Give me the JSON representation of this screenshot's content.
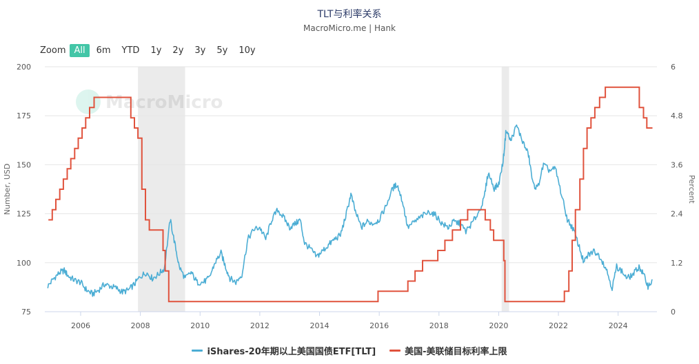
{
  "header": {
    "title": "TLT与利率关系",
    "subtitle": "MacroMicro.me | Hank"
  },
  "zoom": {
    "label": "Zoom",
    "buttons": [
      "All",
      "6m",
      "YTD",
      "1y",
      "2y",
      "3y",
      "5y",
      "10y"
    ],
    "active": "All"
  },
  "watermark": "MacroMicro",
  "colors": {
    "tlt": "#4badd4",
    "rate": "#e0523c",
    "shade": "#ebebeb",
    "grid": "#e6e6e6",
    "accent": "#43c6a7"
  },
  "chart_data": {
    "type": "line",
    "x_range": [
      2004.8,
      2025.3
    ],
    "x_ticks": [
      "2006",
      "2008",
      "2010",
      "2012",
      "2014",
      "2016",
      "2018",
      "2020",
      "2022",
      "2024"
    ],
    "y_left": {
      "label": "Number, USD",
      "range": [
        75,
        200
      ],
      "ticks": [
        "75",
        "100",
        "125",
        "150",
        "175",
        "200"
      ]
    },
    "y_right": {
      "label": "Percent",
      "range": [
        0,
        6
      ],
      "ticks": [
        "0",
        "1.2",
        "2.4",
        "3.6",
        "4.8",
        "6"
      ]
    },
    "recession_bands": [
      [
        2007.92,
        2009.5
      ],
      [
        2020.1,
        2020.35
      ]
    ],
    "series": [
      {
        "name": "iShares-20年期以上美国国债ETF[TLT]",
        "axis": "left",
        "points": [
          [
            2004.9,
            88
          ],
          [
            2005.1,
            92
          ],
          [
            2005.3,
            95
          ],
          [
            2005.45,
            96
          ],
          [
            2005.6,
            93
          ],
          [
            2005.8,
            91
          ],
          [
            2006.0,
            90
          ],
          [
            2006.2,
            86
          ],
          [
            2006.4,
            84
          ],
          [
            2006.6,
            86
          ],
          [
            2006.8,
            89
          ],
          [
            2007.0,
            88
          ],
          [
            2007.2,
            87
          ],
          [
            2007.4,
            85
          ],
          [
            2007.6,
            86
          ],
          [
            2007.8,
            89
          ],
          [
            2008.0,
            93
          ],
          [
            2008.2,
            95
          ],
          [
            2008.4,
            92
          ],
          [
            2008.6,
            94
          ],
          [
            2008.8,
            97
          ],
          [
            2009.0,
            122
          ],
          [
            2009.15,
            110
          ],
          [
            2009.3,
            98
          ],
          [
            2009.5,
            92
          ],
          [
            2009.7,
            95
          ],
          [
            2009.9,
            90
          ],
          [
            2010.1,
            90
          ],
          [
            2010.3,
            92
          ],
          [
            2010.5,
            100
          ],
          [
            2010.7,
            105
          ],
          [
            2010.85,
            98
          ],
          [
            2011.0,
            92
          ],
          [
            2011.2,
            90
          ],
          [
            2011.4,
            94
          ],
          [
            2011.6,
            112
          ],
          [
            2011.8,
            117
          ],
          [
            2012.0,
            118
          ],
          [
            2012.2,
            112
          ],
          [
            2012.4,
            122
          ],
          [
            2012.6,
            127
          ],
          [
            2012.8,
            123
          ],
          [
            2013.0,
            118
          ],
          [
            2013.2,
            120
          ],
          [
            2013.35,
            122
          ],
          [
            2013.5,
            110
          ],
          [
            2013.7,
            107
          ],
          [
            2013.9,
            103
          ],
          [
            2014.1,
            106
          ],
          [
            2014.3,
            109
          ],
          [
            2014.5,
            112
          ],
          [
            2014.7,
            114
          ],
          [
            2014.9,
            125
          ],
          [
            2015.05,
            135
          ],
          [
            2015.2,
            126
          ],
          [
            2015.4,
            118
          ],
          [
            2015.6,
            121
          ],
          [
            2015.8,
            120
          ],
          [
            2016.0,
            122
          ],
          [
            2016.2,
            128
          ],
          [
            2016.45,
            138
          ],
          [
            2016.6,
            140
          ],
          [
            2016.8,
            130
          ],
          [
            2016.95,
            118
          ],
          [
            2017.2,
            121
          ],
          [
            2017.45,
            124
          ],
          [
            2017.7,
            126
          ],
          [
            2017.9,
            124
          ],
          [
            2018.1,
            120
          ],
          [
            2018.3,
            118
          ],
          [
            2018.5,
            121
          ],
          [
            2018.7,
            120
          ],
          [
            2018.9,
            116
          ],
          [
            2019.1,
            120
          ],
          [
            2019.3,
            125
          ],
          [
            2019.5,
            132
          ],
          [
            2019.65,
            146
          ],
          [
            2019.85,
            138
          ],
          [
            2020.0,
            140
          ],
          [
            2020.15,
            152
          ],
          [
            2020.25,
            168
          ],
          [
            2020.4,
            162
          ],
          [
            2020.6,
            170
          ],
          [
            2020.8,
            162
          ],
          [
            2021.0,
            155
          ],
          [
            2021.15,
            140
          ],
          [
            2021.3,
            138
          ],
          [
            2021.5,
            150
          ],
          [
            2021.7,
            147
          ],
          [
            2021.9,
            148
          ],
          [
            2022.1,
            135
          ],
          [
            2022.3,
            122
          ],
          [
            2022.5,
            117
          ],
          [
            2022.7,
            108
          ],
          [
            2022.85,
            100
          ],
          [
            2023.0,
            104
          ],
          [
            2023.2,
            106
          ],
          [
            2023.4,
            103
          ],
          [
            2023.6,
            97
          ],
          [
            2023.8,
            87
          ],
          [
            2023.95,
            98
          ],
          [
            2024.1,
            96
          ],
          [
            2024.3,
            92
          ],
          [
            2024.5,
            94
          ],
          [
            2024.7,
            98
          ],
          [
            2024.85,
            94
          ],
          [
            2025.0,
            88
          ],
          [
            2025.15,
            91
          ]
        ]
      },
      {
        "name": "美国-美联储目标利率上限",
        "axis": "right",
        "points": [
          [
            2004.92,
            2.25
          ],
          [
            2005.05,
            2.5
          ],
          [
            2005.17,
            2.75
          ],
          [
            2005.3,
            3.0
          ],
          [
            2005.42,
            3.25
          ],
          [
            2005.55,
            3.5
          ],
          [
            2005.67,
            3.75
          ],
          [
            2005.8,
            4.0
          ],
          [
            2005.92,
            4.25
          ],
          [
            2006.05,
            4.5
          ],
          [
            2006.17,
            4.75
          ],
          [
            2006.3,
            5.0
          ],
          [
            2006.45,
            5.25
          ],
          [
            2007.68,
            4.75
          ],
          [
            2007.8,
            4.5
          ],
          [
            2007.92,
            4.25
          ],
          [
            2008.05,
            3.0
          ],
          [
            2008.17,
            2.25
          ],
          [
            2008.3,
            2.0
          ],
          [
            2008.76,
            1.5
          ],
          [
            2008.83,
            1.0
          ],
          [
            2008.95,
            0.25
          ],
          [
            2015.96,
            0.5
          ],
          [
            2016.96,
            0.75
          ],
          [
            2017.2,
            1.0
          ],
          [
            2017.45,
            1.25
          ],
          [
            2017.96,
            1.5
          ],
          [
            2018.2,
            1.75
          ],
          [
            2018.45,
            2.0
          ],
          [
            2018.72,
            2.25
          ],
          [
            2018.96,
            2.5
          ],
          [
            2019.55,
            2.25
          ],
          [
            2019.72,
            2.0
          ],
          [
            2019.83,
            1.75
          ],
          [
            2020.17,
            1.25
          ],
          [
            2020.21,
            0.25
          ],
          [
            2022.2,
            0.5
          ],
          [
            2022.35,
            1.0
          ],
          [
            2022.46,
            1.75
          ],
          [
            2022.57,
            2.5
          ],
          [
            2022.72,
            3.25
          ],
          [
            2022.84,
            4.0
          ],
          [
            2022.96,
            4.5
          ],
          [
            2023.09,
            4.75
          ],
          [
            2023.22,
            5.0
          ],
          [
            2023.38,
            5.25
          ],
          [
            2023.57,
            5.5
          ],
          [
            2024.71,
            5.0
          ],
          [
            2024.85,
            4.75
          ],
          [
            2024.96,
            4.5
          ],
          [
            2025.15,
            4.5
          ]
        ]
      }
    ],
    "legend": [
      "iShares-20年期以上美国国债ETF[TLT]",
      "美国-美联储目标利率上限"
    ]
  }
}
